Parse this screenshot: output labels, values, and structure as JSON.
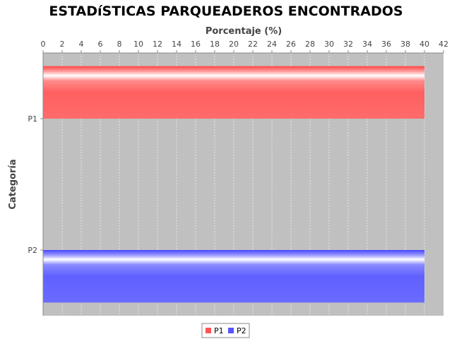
{
  "chart_data": {
    "type": "bar",
    "orientation": "horizontal",
    "title": "ESTADíSTICAS PARQUEADEROS ENCONTRADOS",
    "xlabel": "Porcentaje (%)",
    "ylabel": "Categoría",
    "categories": [
      "P1",
      "P2"
    ],
    "series": [
      {
        "name": "P1",
        "values": [
          40,
          null
        ],
        "color": "#ff5555"
      },
      {
        "name": "P2",
        "values": [
          null,
          40
        ],
        "color": "#5555ff"
      }
    ],
    "xlim": [
      0,
      42
    ],
    "x_ticks": [
      "0",
      "2",
      "4",
      "6",
      "8",
      "10",
      "12",
      "14",
      "16",
      "18",
      "20",
      "22",
      "24",
      "26",
      "28",
      "30",
      "32",
      "34",
      "36",
      "38",
      "40",
      "42"
    ],
    "x_axis_position": "top",
    "grid": true,
    "plot_background": "#c0c0c0",
    "legend_placement": "bottom-center"
  }
}
